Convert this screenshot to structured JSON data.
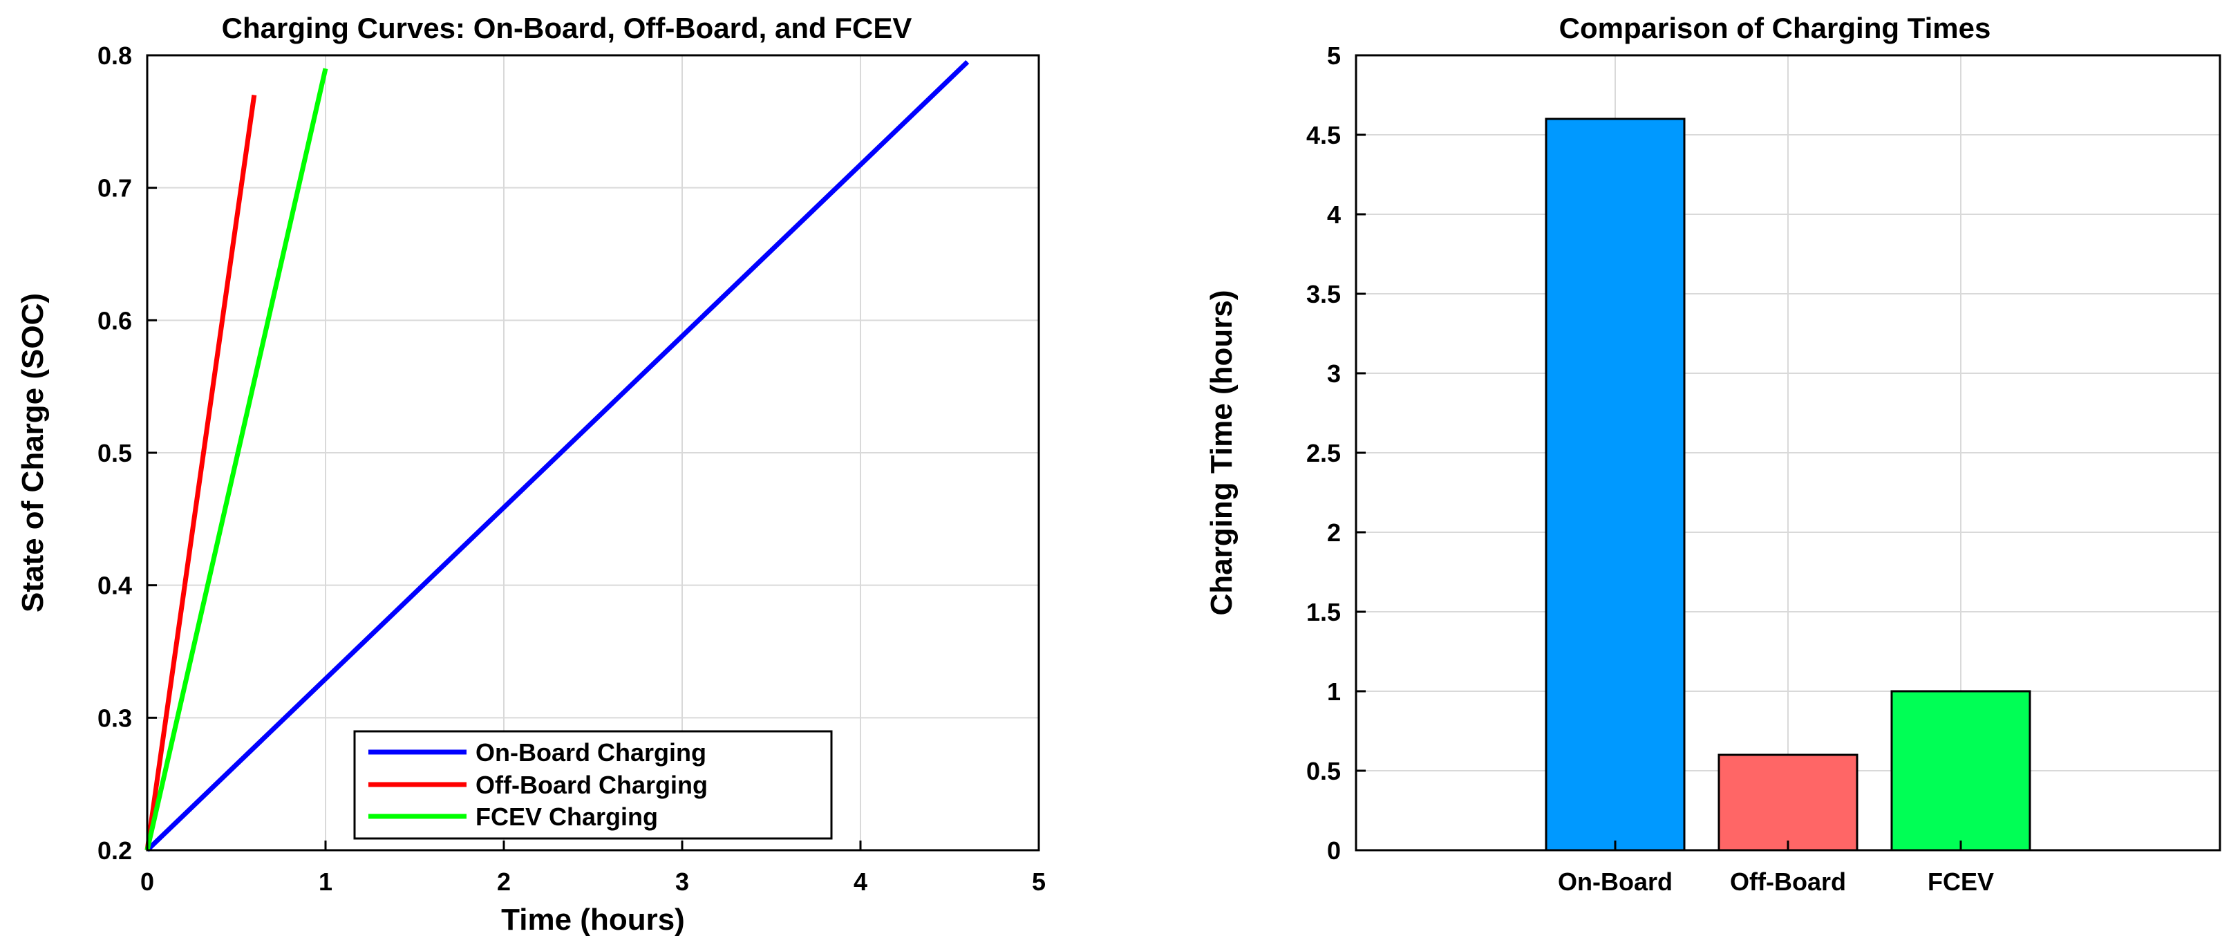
{
  "chart_data": [
    {
      "type": "line",
      "title": "Charging Curves: On-Board, Off-Board, and FCEV",
      "xlabel": "Time (hours)",
      "ylabel": "State of Charge (SOC)",
      "xlim": [
        0,
        5
      ],
      "ylim": [
        0.2,
        0.8
      ],
      "xticks": [
        "0",
        "1",
        "2",
        "3",
        "4",
        "5"
      ],
      "yticks": [
        "0.2",
        "0.3",
        "0.4",
        "0.5",
        "0.6",
        "0.7",
        "0.8"
      ],
      "grid": true,
      "legend_position": "bottom-center",
      "series": [
        {
          "name": "On-Board Charging",
          "color": "#0000ff",
          "x": [
            0,
            4.6
          ],
          "y": [
            0.2,
            0.795
          ]
        },
        {
          "name": "Off-Board Charging",
          "color": "#ff0000",
          "x": [
            0,
            0.6
          ],
          "y": [
            0.2,
            0.77
          ]
        },
        {
          "name": "FCEV Charging",
          "color": "#00ff00",
          "x": [
            0,
            1.0
          ],
          "y": [
            0.2,
            0.79
          ]
        }
      ]
    },
    {
      "type": "bar",
      "title": "Comparison of Charging Times",
      "xlabel": "",
      "ylabel": "Charging Time (hours)",
      "ylim": [
        0,
        5
      ],
      "yticks": [
        "0",
        "0.5",
        "1",
        "1.5",
        "2",
        "2.5",
        "3",
        "3.5",
        "4",
        "4.5",
        "5"
      ],
      "grid": true,
      "categories": [
        "On-Board",
        "Off-Board",
        "FCEV"
      ],
      "values": [
        4.6,
        0.6,
        1.0
      ],
      "colors": [
        "#0099ff",
        "#ff6666",
        "#00ff55"
      ]
    }
  ]
}
